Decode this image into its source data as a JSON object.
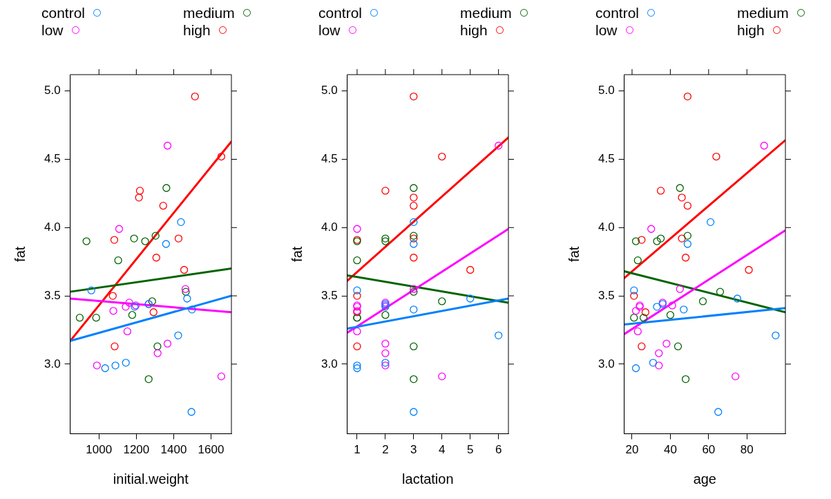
{
  "chart_data": [
    {
      "type": "scatter",
      "xlabel": "initial.weight",
      "ylabel": "fat",
      "xlim": [
        846,
        1709
      ],
      "xticks": [
        1000,
        1200,
        1400,
        1600
      ],
      "ylim": [
        2.49,
        5.12
      ],
      "yticks": [
        {
          "value": 3,
          "label": "3.0"
        },
        {
          "value": 3.5,
          "label": "3.5"
        },
        {
          "value": 4,
          "label": "4.0"
        },
        {
          "value": 4.5,
          "label": "4.5"
        },
        {
          "value": 5,
          "label": "5.0"
        }
      ],
      "legend": "top",
      "marker": "circle",
      "series": [
        {
          "name": "control",
          "color": "#0080ff",
          "x": [
            1439,
            1359,
            959,
            1472,
            1498,
            1191,
            1266,
            1424,
            1144,
            1088,
            1033,
            1495
          ],
          "values": [
            4.04,
            3.88,
            3.54,
            3.48,
            3.4,
            3.42,
            3.44,
            3.21,
            3.01,
            2.99,
            2.97,
            2.65
          ]
        },
        {
          "name": "low",
          "color": "#ff00ff",
          "x": [
            1367,
            1108,
            1463,
            1162,
            1197,
            1143,
            1077,
            1266,
            1152,
            1367,
            1314,
            989,
            1655
          ],
          "values": [
            4.6,
            3.99,
            3.55,
            3.45,
            3.43,
            3.42,
            3.39,
            3.44,
            3.24,
            3.15,
            3.08,
            2.99,
            2.91
          ]
        },
        {
          "name": "medium",
          "color": "#006400",
          "x": [
            1361,
            1303,
            1188,
            1247,
            933,
            1103,
            1465,
            1285,
            1178,
            897,
            985,
            1313,
            1266
          ],
          "values": [
            4.29,
            3.94,
            3.92,
            3.9,
            3.9,
            3.76,
            3.53,
            3.46,
            3.36,
            3.34,
            3.34,
            3.13,
            2.89
          ]
        },
        {
          "name": "high",
          "color": "#ff0000",
          "x": [
            1514,
            1655,
            1219,
            1214,
            1344,
            1082,
            1426,
            1307,
            1456,
            1074,
            1292,
            1084
          ],
          "values": [
            4.96,
            4.52,
            4.27,
            4.22,
            4.16,
            3.91,
            3.92,
            3.78,
            3.69,
            3.5,
            3.38,
            3.13
          ]
        },
        {
          "type": "line",
          "marker": "none",
          "color": "#0080ff",
          "x": [
            846,
            1709
          ],
          "values": [
            3.17,
            3.5
          ]
        },
        {
          "type": "line",
          "marker": "none",
          "color": "#ff00ff",
          "x": [
            846,
            1709
          ],
          "values": [
            3.48,
            3.38
          ]
        },
        {
          "type": "line",
          "marker": "none",
          "color": "#006400",
          "x": [
            846,
            1709
          ],
          "values": [
            3.53,
            3.7
          ]
        },
        {
          "type": "line",
          "marker": "none",
          "color": "#ff0000",
          "x": [
            846,
            1709
          ],
          "values": [
            3.17,
            4.63
          ]
        }
      ]
    },
    {
      "type": "scatter",
      "xlabel": "lactation",
      "ylabel": "fat",
      "xlim": [
        0.65,
        6.35
      ],
      "xticks": [
        1,
        2,
        3,
        4,
        5,
        6
      ],
      "ylim": [
        2.49,
        5.12
      ],
      "yticks": [
        {
          "value": 3,
          "label": "3.0"
        },
        {
          "value": 3.5,
          "label": "3.5"
        },
        {
          "value": 4,
          "label": "4.0"
        },
        {
          "value": 4.5,
          "label": "4.5"
        },
        {
          "value": 5,
          "label": "5.0"
        }
      ],
      "legend": "top",
      "marker": "circle",
      "series": [
        {
          "name": "control",
          "color": "#0080ff",
          "x": [
            3,
            3,
            1,
            5,
            3,
            2,
            2,
            6,
            2,
            1,
            1,
            3
          ],
          "values": [
            4.04,
            3.88,
            3.54,
            3.48,
            3.4,
            3.42,
            3.44,
            3.21,
            3.01,
            2.99,
            2.97,
            2.65
          ]
        },
        {
          "name": "low",
          "color": "#ff00ff",
          "x": [
            6,
            1,
            3,
            2,
            2,
            1,
            1,
            1,
            1,
            2,
            2,
            2,
            4
          ],
          "values": [
            4.6,
            3.99,
            3.55,
            3.45,
            3.43,
            3.42,
            3.39,
            3.43,
            3.24,
            3.15,
            3.08,
            2.99,
            2.91
          ]
        },
        {
          "name": "medium",
          "color": "#006400",
          "x": [
            3,
            3,
            2,
            2,
            1,
            1,
            3,
            4,
            2,
            1,
            1,
            3,
            3
          ],
          "values": [
            4.29,
            3.94,
            3.92,
            3.9,
            3.9,
            3.76,
            3.53,
            3.46,
            3.36,
            3.34,
            3.34,
            3.13,
            2.89
          ]
        },
        {
          "name": "high",
          "color": "#ff0000",
          "x": [
            3,
            4,
            2,
            3,
            3,
            1,
            3,
            3,
            5,
            1,
            1,
            1
          ],
          "values": [
            4.96,
            4.52,
            4.27,
            4.22,
            4.16,
            3.91,
            3.92,
            3.78,
            3.69,
            3.5,
            3.38,
            3.13
          ]
        },
        {
          "type": "line",
          "marker": "none",
          "color": "#0080ff",
          "x": [
            0.65,
            6.35
          ],
          "values": [
            3.26,
            3.48
          ]
        },
        {
          "type": "line",
          "marker": "none",
          "color": "#ff00ff",
          "x": [
            0.65,
            6.35
          ],
          "values": [
            3.23,
            3.99
          ]
        },
        {
          "type": "line",
          "marker": "none",
          "color": "#006400",
          "x": [
            0.65,
            6.35
          ],
          "values": [
            3.65,
            3.45
          ]
        },
        {
          "type": "line",
          "marker": "none",
          "color": "#ff0000",
          "x": [
            0.65,
            6.35
          ],
          "values": [
            3.61,
            4.66
          ]
        }
      ]
    },
    {
      "type": "scatter",
      "xlabel": "age",
      "ylabel": "fat",
      "xlim": [
        15.9,
        100.1
      ],
      "xticks": [
        20,
        40,
        60,
        80
      ],
      "ylim": [
        2.49,
        5.12
      ],
      "yticks": [
        {
          "value": 3,
          "label": "3.0"
        },
        {
          "value": 3.5,
          "label": "3.5"
        },
        {
          "value": 4,
          "label": "4.0"
        },
        {
          "value": 4.5,
          "label": "4.5"
        },
        {
          "value": 5,
          "label": "5.0"
        }
      ],
      "legend": "top",
      "marker": "circle",
      "series": [
        {
          "name": "control",
          "color": "#0080ff",
          "x": [
            61,
            49,
            21,
            75,
            47,
            33,
            36,
            95,
            31,
            22,
            65
          ],
          "values": [
            4.04,
            3.88,
            3.54,
            3.48,
            3.4,
            3.42,
            3.44,
            3.21,
            3.01,
            2.97,
            2.65
          ]
        },
        {
          "name": "low",
          "color": "#ff00ff",
          "x": [
            89,
            30,
            45,
            36,
            41,
            24,
            24,
            22,
            23,
            38,
            34,
            34,
            74
          ],
          "values": [
            4.6,
            3.99,
            3.55,
            3.45,
            3.43,
            3.43,
            3.42,
            3.39,
            3.24,
            3.15,
            3.08,
            2.99,
            2.91
          ]
        },
        {
          "name": "medium",
          "color": "#006400",
          "x": [
            45,
            49,
            35,
            33,
            22,
            23,
            66,
            57,
            40,
            21,
            26,
            44,
            48
          ],
          "values": [
            4.29,
            3.94,
            3.92,
            3.9,
            3.9,
            3.76,
            3.53,
            3.46,
            3.36,
            3.34,
            3.34,
            3.13,
            2.89
          ]
        },
        {
          "name": "high",
          "color": "#ff0000",
          "x": [
            49,
            64,
            35,
            46,
            49,
            25,
            46,
            48,
            81,
            21,
            27,
            25
          ],
          "values": [
            4.96,
            4.52,
            4.27,
            4.22,
            4.16,
            3.91,
            3.92,
            3.78,
            3.69,
            3.5,
            3.38,
            3.13
          ]
        },
        {
          "type": "line",
          "marker": "none",
          "color": "#0080ff",
          "x": [
            15.9,
            100.1
          ],
          "values": [
            3.29,
            3.41
          ]
        },
        {
          "type": "line",
          "marker": "none",
          "color": "#ff00ff",
          "x": [
            15.9,
            100.1
          ],
          "values": [
            3.22,
            3.98
          ]
        },
        {
          "type": "line",
          "marker": "none",
          "color": "#006400",
          "x": [
            15.9,
            100.1
          ],
          "values": [
            3.68,
            3.38
          ]
        },
        {
          "type": "line",
          "marker": "none",
          "color": "#ff0000",
          "x": [
            15.9,
            100.1
          ],
          "values": [
            3.63,
            4.64
          ]
        }
      ]
    }
  ]
}
